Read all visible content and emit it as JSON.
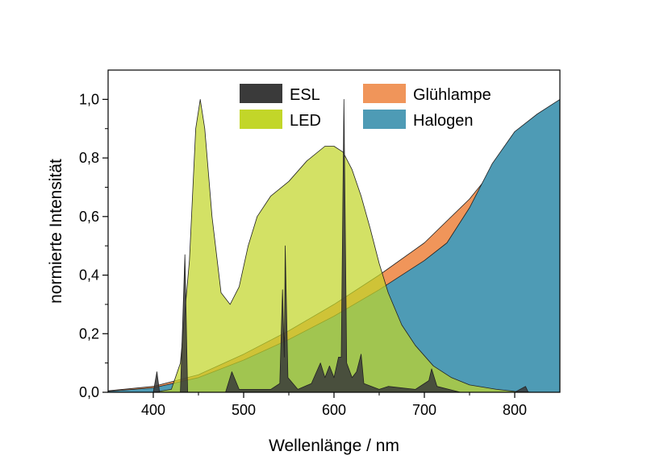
{
  "chart_data": {
    "type": "area",
    "title": "",
    "xlabel": "Wellenlänge / nm",
    "ylabel": "normierte Intensität",
    "xlim": [
      350,
      850
    ],
    "ylim": [
      0,
      1.1
    ],
    "x_ticks": [
      "400",
      "500",
      "600",
      "700",
      "800"
    ],
    "y_ticks": [
      "0,0",
      "0,2",
      "0,4",
      "0,6",
      "0,8",
      "1,0"
    ],
    "x_tick_values": [
      400,
      500,
      600,
      700,
      800
    ],
    "y_tick_values": [
      0,
      0.2,
      0.4,
      0.6,
      0.8,
      1.0
    ],
    "grid": false,
    "legend_position": "top",
    "series": [
      {
        "name": "Glühlampe",
        "color": "#F0955A",
        "points": [
          [
            350,
            0.005
          ],
          [
            400,
            0.02
          ],
          [
            450,
            0.06
          ],
          [
            500,
            0.13
          ],
          [
            550,
            0.21
          ],
          [
            600,
            0.3
          ],
          [
            650,
            0.4
          ],
          [
            700,
            0.51
          ],
          [
            750,
            0.66
          ],
          [
            800,
            0.85
          ],
          [
            850,
            1.0
          ]
        ]
      },
      {
        "name": "Halogen",
        "color": "#4E9BB5",
        "points": [
          [
            350,
            0.003
          ],
          [
            400,
            0.015
          ],
          [
            450,
            0.05
          ],
          [
            500,
            0.11
          ],
          [
            550,
            0.18
          ],
          [
            600,
            0.26
          ],
          [
            650,
            0.35
          ],
          [
            700,
            0.45
          ],
          [
            725,
            0.51
          ],
          [
            750,
            0.63
          ],
          [
            775,
            0.78
          ],
          [
            800,
            0.89
          ],
          [
            825,
            0.95
          ],
          [
            850,
            1.0
          ]
        ]
      },
      {
        "name": "LED",
        "color": "#C2D629",
        "points": [
          [
            400,
            0
          ],
          [
            420,
            0.01
          ],
          [
            430,
            0.1
          ],
          [
            440,
            0.45
          ],
          [
            447,
            0.9
          ],
          [
            452,
            1.0
          ],
          [
            457,
            0.9
          ],
          [
            465,
            0.6
          ],
          [
            475,
            0.34
          ],
          [
            485,
            0.3
          ],
          [
            495,
            0.36
          ],
          [
            505,
            0.5
          ],
          [
            515,
            0.6
          ],
          [
            530,
            0.67
          ],
          [
            550,
            0.72
          ],
          [
            570,
            0.79
          ],
          [
            590,
            0.84
          ],
          [
            600,
            0.84
          ],
          [
            610,
            0.82
          ],
          [
            620,
            0.76
          ],
          [
            630,
            0.67
          ],
          [
            640,
            0.56
          ],
          [
            650,
            0.44
          ],
          [
            660,
            0.34
          ],
          [
            675,
            0.23
          ],
          [
            690,
            0.16
          ],
          [
            710,
            0.09
          ],
          [
            730,
            0.05
          ],
          [
            750,
            0.025
          ],
          [
            780,
            0.01
          ],
          [
            800,
            0.003
          ],
          [
            820,
            0
          ]
        ]
      },
      {
        "name": "ESL",
        "color": "#3A3A3A",
        "points": [
          [
            350,
            0
          ],
          [
            400,
            0
          ],
          [
            404,
            0.07
          ],
          [
            407,
            0
          ],
          [
            430,
            0
          ],
          [
            435,
            0.47
          ],
          [
            438,
            0
          ],
          [
            480,
            0
          ],
          [
            487,
            0.07
          ],
          [
            495,
            0.01
          ],
          [
            530,
            0.01
          ],
          [
            540,
            0.03
          ],
          [
            543,
            0.35
          ],
          [
            545,
            0.12
          ],
          [
            546,
            0.5
          ],
          [
            549,
            0.05
          ],
          [
            560,
            0.01
          ],
          [
            575,
            0.03
          ],
          [
            585,
            0.1
          ],
          [
            590,
            0.05
          ],
          [
            595,
            0.09
          ],
          [
            600,
            0.05
          ],
          [
            605,
            0.12
          ],
          [
            608,
            0.12
          ],
          [
            611,
            1.0
          ],
          [
            614,
            0.1
          ],
          [
            620,
            0.05
          ],
          [
            625,
            0.07
          ],
          [
            630,
            0.13
          ],
          [
            633,
            0.03
          ],
          [
            650,
            0.01
          ],
          [
            660,
            0.02
          ],
          [
            690,
            0.01
          ],
          [
            705,
            0.04
          ],
          [
            708,
            0.08
          ],
          [
            711,
            0.05
          ],
          [
            714,
            0.02
          ],
          [
            740,
            0
          ],
          [
            800,
            0
          ],
          [
            812,
            0.02
          ],
          [
            815,
            0
          ],
          [
            850,
            0
          ]
        ]
      }
    ]
  },
  "legend": [
    {
      "label": "ESL",
      "color": "#3A3A3A"
    },
    {
      "label": "Glühlampe",
      "color": "#F0955A"
    },
    {
      "label": "LED",
      "color": "#C2D629"
    },
    {
      "label": "Halogen",
      "color": "#4E9BB5"
    }
  ]
}
